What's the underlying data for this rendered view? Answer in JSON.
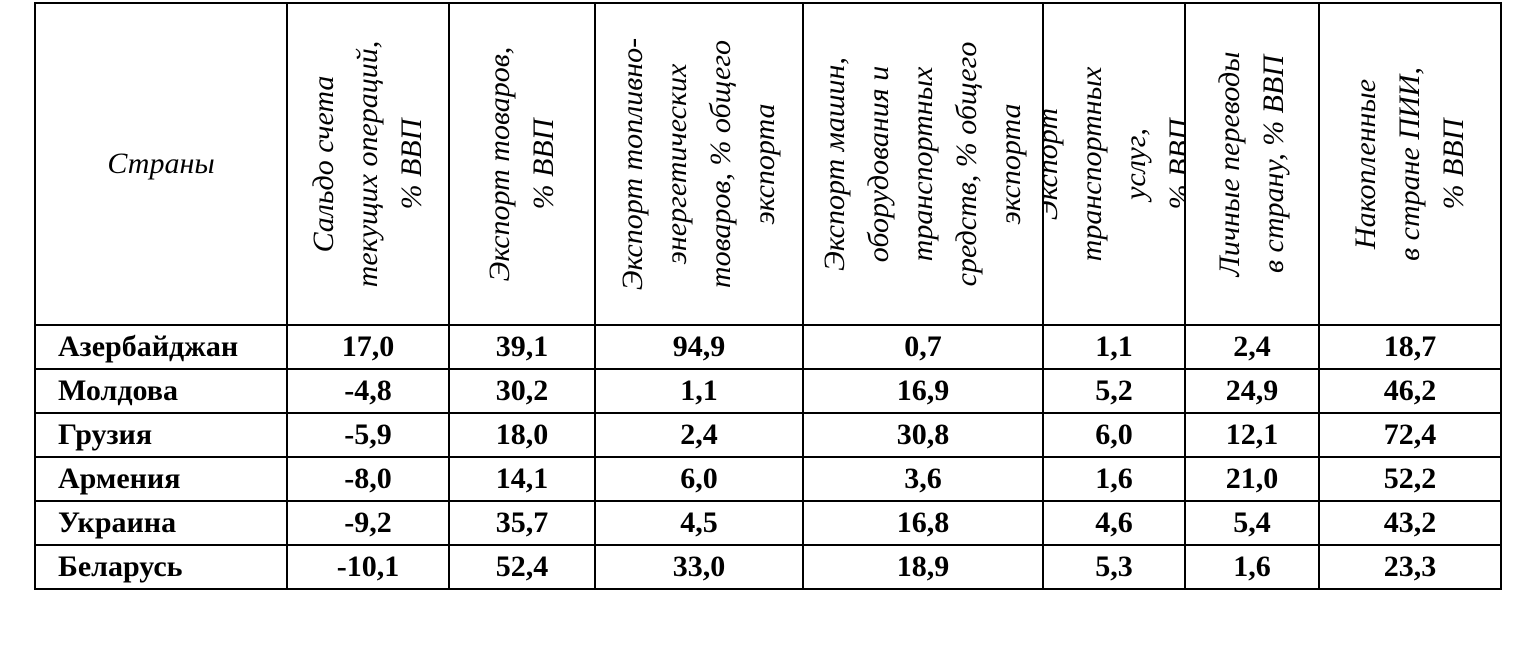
{
  "table": {
    "corner_label": "Страны",
    "columns": [
      "Сальдо счета\nтекущих операций,\n% ВВП",
      "Экспорт товаров,\n% ВВП",
      "Экспорт топливно-\nэнергетических\nтоваров, % общего\nэкспорта",
      "Экспорт машин,\nоборудования и\nтранспортных\nсредств, % общего\nэкспорта",
      "Экспорт\nтранспортных\nуслуг,\n% ВВП",
      "Личные переводы\nв страну, % ВВП",
      "Накопленные\nв стране ПИИ,\n% ВВП"
    ],
    "rows": [
      {
        "country": "Азербайджан",
        "values": [
          "17,0",
          "39,1",
          "94,9",
          "0,7",
          "1,1",
          "2,4",
          "18,7"
        ]
      },
      {
        "country": "Молдова",
        "values": [
          "-4,8",
          "30,2",
          "1,1",
          "16,9",
          "5,2",
          "24,9",
          "46,2"
        ]
      },
      {
        "country": "Грузия",
        "values": [
          "-5,9",
          "18,0",
          "2,4",
          "30,8",
          "6,0",
          "12,1",
          "72,4"
        ]
      },
      {
        "country": "Армения",
        "values": [
          "-8,0",
          "14,1",
          "6,0",
          "3,6",
          "1,6",
          "21,0",
          "52,2"
        ]
      },
      {
        "country": "Украина",
        "values": [
          "-9,2",
          "35,7",
          "4,5",
          "16,8",
          "4,6",
          "5,4",
          "43,2"
        ]
      },
      {
        "country": "Беларусь",
        "values": [
          "-10,1",
          "52,4",
          "33,0",
          "18,9",
          "5,3",
          "1,6",
          "23,3"
        ]
      }
    ]
  }
}
